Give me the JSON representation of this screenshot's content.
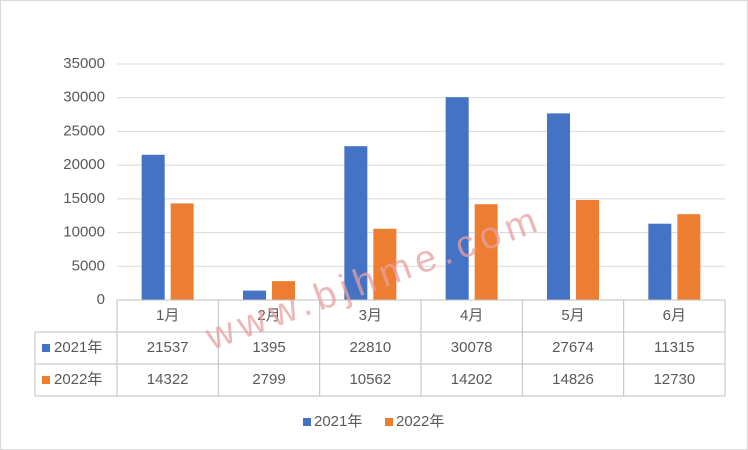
{
  "chart_data": {
    "type": "bar",
    "categories": [
      "1月",
      "2月",
      "3月",
      "4月",
      "5月",
      "6月"
    ],
    "series": [
      {
        "name": "2021年",
        "color": "#4472c4",
        "values": [
          21537,
          1395,
          22810,
          30078,
          27674,
          11315
        ]
      },
      {
        "name": "2022年",
        "color": "#ed7d31",
        "values": [
          14322,
          2799,
          10562,
          14202,
          14826,
          12730
        ]
      }
    ],
    "ylim": [
      0,
      35000
    ],
    "yticks": [
      0,
      5000,
      10000,
      15000,
      20000,
      25000,
      30000,
      35000
    ],
    "grid": true,
    "data_table": true,
    "legend": "bottom",
    "watermark": "www.bjhme.com"
  }
}
